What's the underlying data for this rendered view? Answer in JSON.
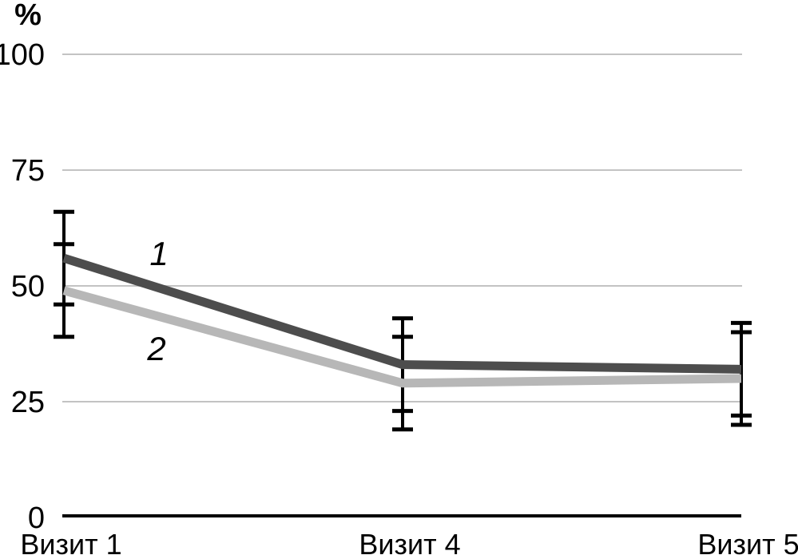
{
  "chart_data": {
    "type": "line",
    "title": "",
    "ylabel": "%",
    "xlabel": "",
    "categories": [
      "Визит 1",
      "Визит 4",
      "Визит 5"
    ],
    "series": [
      {
        "name": "1",
        "values": [
          56,
          33,
          32
        ],
        "error_plus": [
          10,
          10,
          10
        ],
        "error_minus": [
          10,
          10,
          10
        ],
        "color": "#4d4d4d"
      },
      {
        "name": "2",
        "values": [
          49,
          29,
          30
        ],
        "error_plus": [
          10,
          10,
          10
        ],
        "error_minus": [
          10,
          10,
          10
        ],
        "color": "#b7b7b7"
      }
    ],
    "ylim": [
      0,
      100
    ],
    "yticks": [
      0,
      25,
      50,
      75,
      100
    ],
    "grid": true,
    "grid_color": "#c3c3c3",
    "axis_color": "#000000",
    "error_bar_color": "#000000",
    "background": "#ffffff",
    "legend": "inline italic numeric labels near left segment of each line"
  }
}
